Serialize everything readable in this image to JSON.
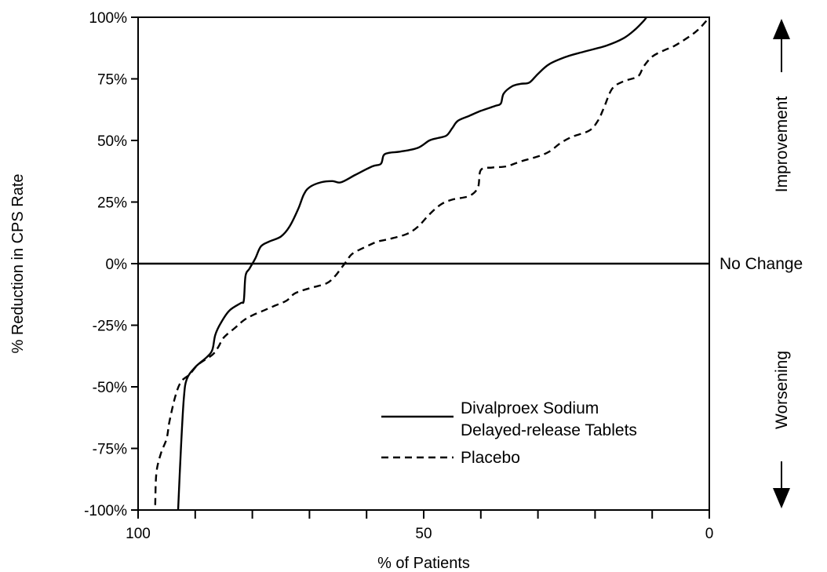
{
  "chart_data": {
    "type": "line",
    "xlabel": "% of Patients",
    "ylabel": "% Reduction in CPS Rate",
    "xlim": [
      100,
      0
    ],
    "ylim": [
      -100,
      100
    ],
    "x_ticks": [
      100,
      90,
      80,
      70,
      60,
      50,
      40,
      30,
      20,
      10,
      0
    ],
    "x_tick_labels": [
      {
        "value": 100,
        "label": "100"
      },
      {
        "value": 50,
        "label": "50"
      },
      {
        "value": 0,
        "label": "0"
      }
    ],
    "y_tick_labels": [
      {
        "value": 100,
        "label": "100%"
      },
      {
        "value": 75,
        "label": "75%"
      },
      {
        "value": 50,
        "label": "50%"
      },
      {
        "value": 25,
        "label": "25%"
      },
      {
        "value": 0,
        "label": "0%"
      },
      {
        "value": -25,
        "label": "-25%"
      },
      {
        "value": -50,
        "label": "-50%"
      },
      {
        "value": -75,
        "label": "-75%"
      },
      {
        "value": -100,
        "label": "-100%"
      }
    ],
    "reference_line": {
      "y": 0,
      "label": "No Change"
    },
    "annotations": {
      "improvement": "Improvement",
      "worsening": "Worsening"
    },
    "legend": {
      "position": "bottom-right",
      "entries": [
        {
          "lines": [
            "Divalproex Sodium",
            "Delayed-release Tablets"
          ],
          "style": "solid"
        },
        {
          "lines": [
            "Placebo"
          ],
          "style": "dashed"
        }
      ]
    },
    "series": [
      {
        "style": "solid",
        "points": [
          [
            93,
            -100
          ],
          [
            92.5,
            -75
          ],
          [
            92,
            -55
          ],
          [
            91.5,
            -47
          ],
          [
            90,
            -42
          ],
          [
            88,
            -38
          ],
          [
            87,
            -35
          ],
          [
            86.5,
            -29
          ],
          [
            85.5,
            -24
          ],
          [
            84,
            -19
          ],
          [
            82,
            -16
          ],
          [
            81.5,
            -15
          ],
          [
            81.2,
            -5
          ],
          [
            80.5,
            -2
          ],
          [
            79.5,
            2
          ],
          [
            78.5,
            7
          ],
          [
            77,
            9
          ],
          [
            75,
            11
          ],
          [
            73.5,
            15
          ],
          [
            72,
            22
          ],
          [
            71,
            28
          ],
          [
            70,
            31
          ],
          [
            68,
            33
          ],
          [
            66,
            33.5
          ],
          [
            64.5,
            33
          ],
          [
            62,
            36
          ],
          [
            59,
            39.5
          ],
          [
            57.5,
            40.5
          ],
          [
            57,
            44
          ],
          [
            56,
            45
          ],
          [
            54,
            45.5
          ],
          [
            51,
            47
          ],
          [
            49,
            50
          ],
          [
            47.5,
            51
          ],
          [
            46,
            52
          ],
          [
            45,
            55
          ],
          [
            44,
            58
          ],
          [
            42,
            60
          ],
          [
            40,
            62
          ],
          [
            37.5,
            64
          ],
          [
            36.5,
            65
          ],
          [
            36,
            69
          ],
          [
            34.5,
            72
          ],
          [
            33,
            73
          ],
          [
            31.5,
            73.5
          ],
          [
            30,
            77
          ],
          [
            28,
            81
          ],
          [
            25,
            84
          ],
          [
            22,
            86
          ],
          [
            18,
            88.5
          ],
          [
            15,
            91.5
          ],
          [
            13,
            95
          ],
          [
            11.5,
            98.5
          ],
          [
            11,
            100
          ]
        ]
      },
      {
        "style": "dashed",
        "points": [
          [
            97,
            -98
          ],
          [
            96.8,
            -85
          ],
          [
            96,
            -77
          ],
          [
            95,
            -71
          ],
          [
            94.5,
            -64
          ],
          [
            93.5,
            -54
          ],
          [
            92.5,
            -48
          ],
          [
            91,
            -45
          ],
          [
            89.5,
            -41
          ],
          [
            87,
            -37
          ],
          [
            86,
            -34
          ],
          [
            85,
            -30
          ],
          [
            83,
            -26
          ],
          [
            81.5,
            -23
          ],
          [
            80,
            -21
          ],
          [
            78,
            -19
          ],
          [
            76,
            -17
          ],
          [
            74,
            -15
          ],
          [
            72.5,
            -12
          ],
          [
            70,
            -10
          ],
          [
            67,
            -8
          ],
          [
            65.5,
            -5
          ],
          [
            64.5,
            -2
          ],
          [
            63.5,
            1
          ],
          [
            62.5,
            4
          ],
          [
            60,
            7
          ],
          [
            58,
            9
          ],
          [
            56,
            10
          ],
          [
            53,
            12
          ],
          [
            51,
            15
          ],
          [
            49,
            20
          ],
          [
            47,
            24
          ],
          [
            45,
            26
          ],
          [
            42,
            27.5
          ],
          [
            40.5,
            31
          ],
          [
            40,
            38
          ],
          [
            38,
            39
          ],
          [
            35.5,
            39.5
          ],
          [
            33,
            41.5
          ],
          [
            30,
            43.5
          ],
          [
            28,
            45.5
          ],
          [
            26,
            49
          ],
          [
            24,
            51.5
          ],
          [
            21,
            54
          ],
          [
            19.5,
            58
          ],
          [
            18.5,
            63
          ],
          [
            17,
            71
          ],
          [
            15,
            74
          ],
          [
            12.5,
            76
          ],
          [
            11.5,
            80
          ],
          [
            10,
            84
          ],
          [
            8,
            86.5
          ],
          [
            6,
            88.5
          ],
          [
            3,
            93
          ],
          [
            1.5,
            96
          ],
          [
            0,
            100
          ]
        ]
      }
    ]
  }
}
